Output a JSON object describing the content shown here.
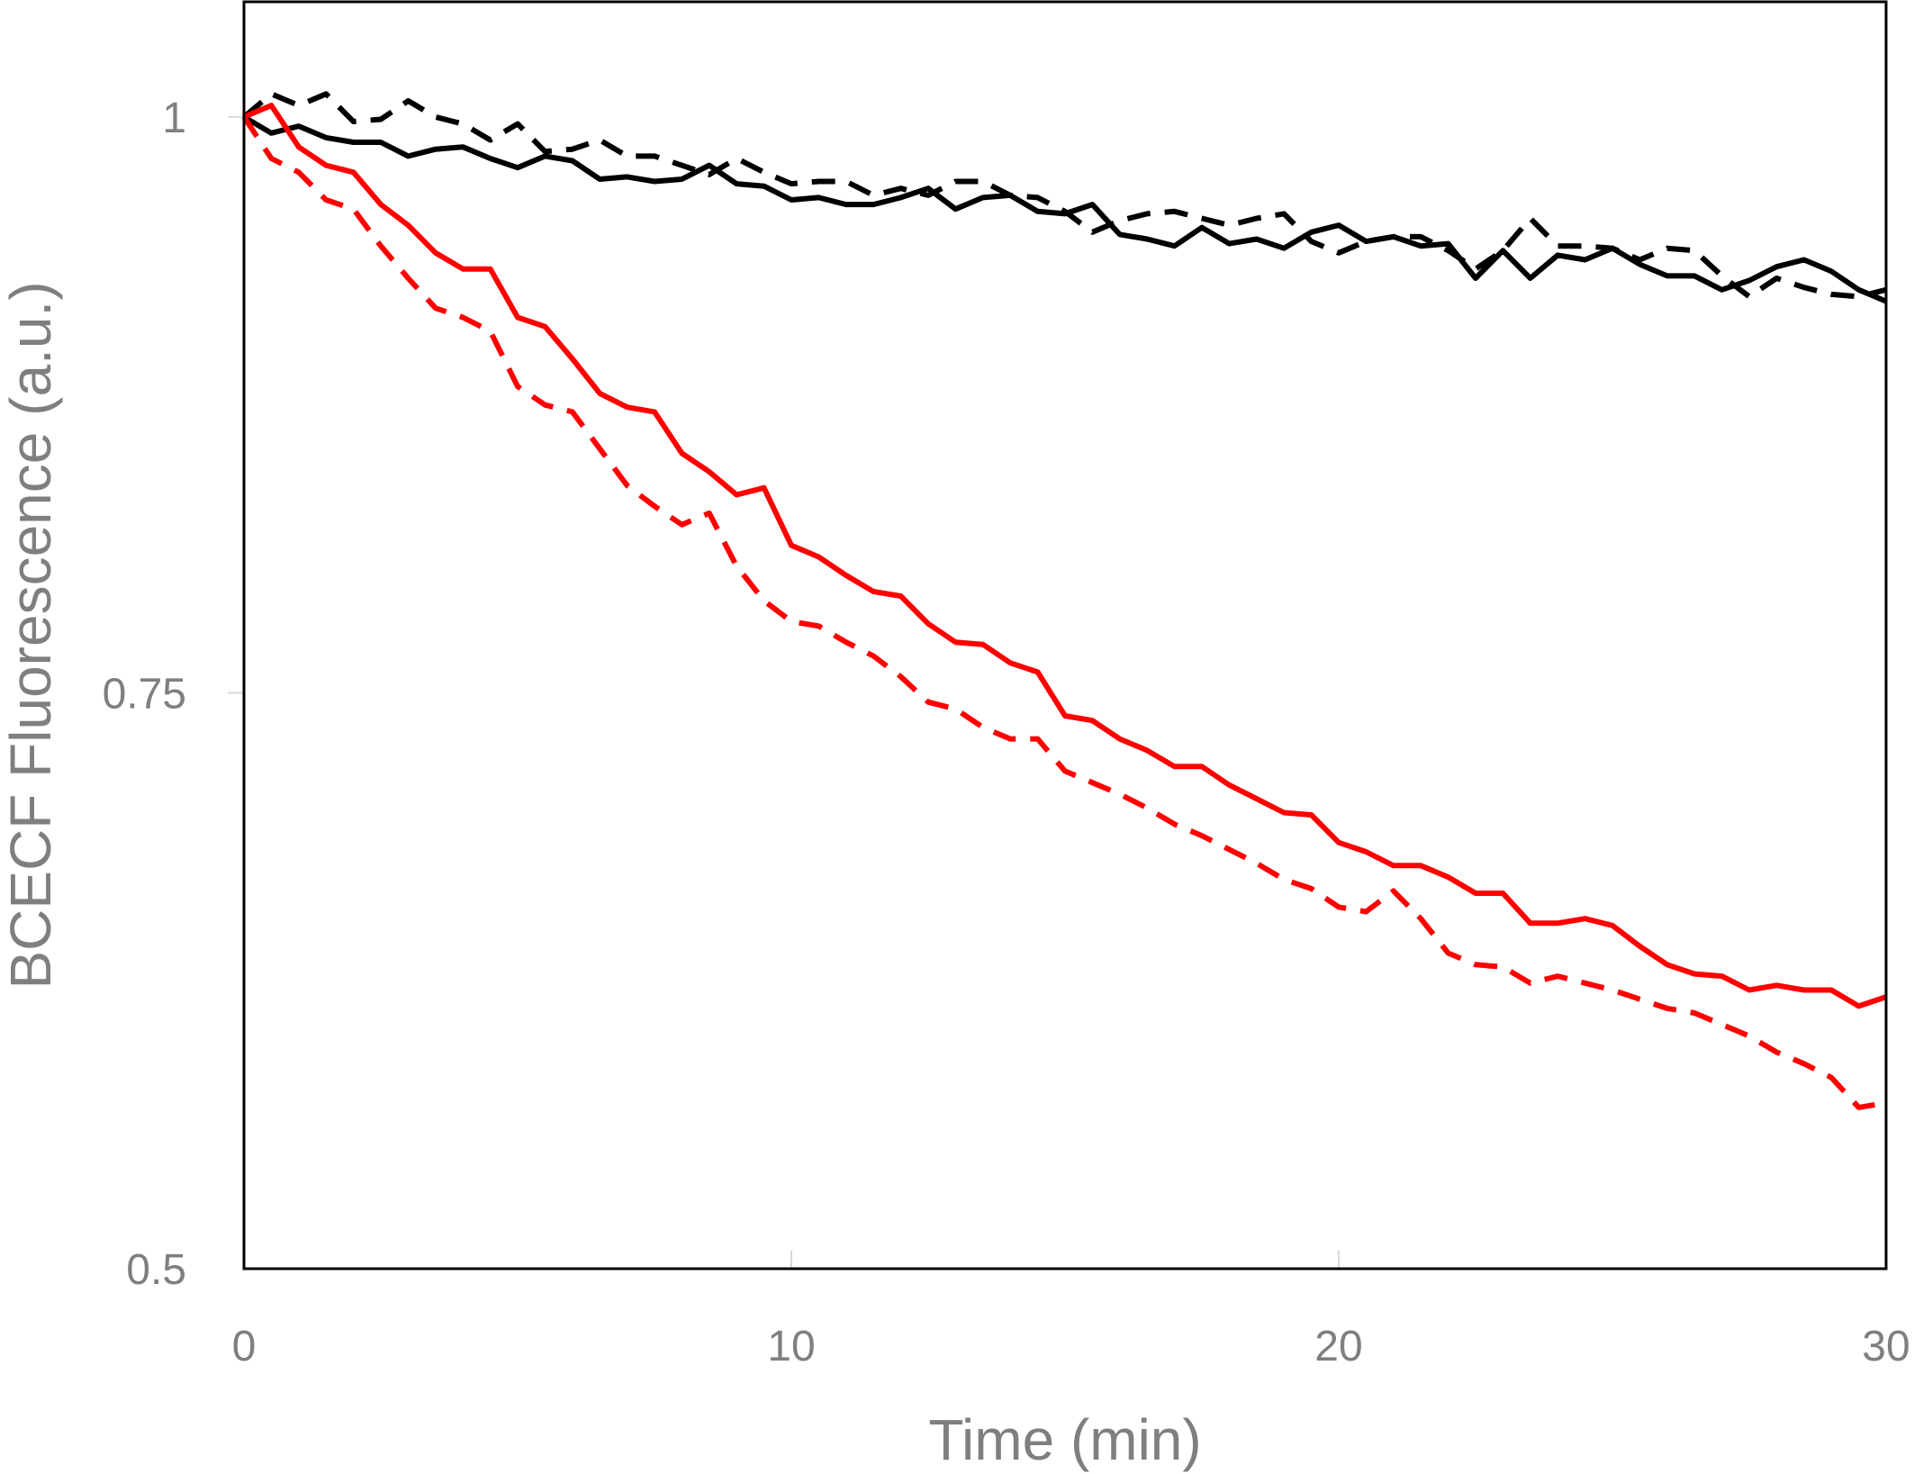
{
  "chart_data": {
    "type": "line",
    "title": "",
    "xlabel": "Time (min)",
    "ylabel": "BCECF Fluorescence (a.u.)",
    "xlim": [
      0,
      30
    ],
    "ylim": [
      0.5,
      1.05
    ],
    "x_ticks": [
      0,
      10,
      20,
      30
    ],
    "x_tick_labels": [
      "0",
      "10",
      "20",
      "30"
    ],
    "y_ticks": [
      0.5,
      0.75,
      1
    ],
    "y_tick_labels": [
      "0.5",
      "0.75",
      "1"
    ],
    "grid": false,
    "legend": "none",
    "series": [
      {
        "color": "#000000",
        "dash": "dashed",
        "x": [
          0,
          0.5,
          1,
          1.5,
          2,
          2.5,
          3,
          3.5,
          4,
          4.5,
          5,
          5.5,
          6,
          6.5,
          7,
          7.5,
          8,
          8.5,
          9,
          9.5,
          10,
          10.5,
          11,
          11.5,
          12,
          12.5,
          13,
          13.5,
          14,
          14.5,
          15,
          15.5,
          16,
          16.5,
          17,
          17.5,
          18,
          18.5,
          19,
          19.5,
          20,
          20.5,
          21,
          21.5,
          22,
          22.5,
          23,
          23.5,
          24,
          24.5,
          25,
          25.5,
          26,
          26.5,
          27,
          27.5,
          28,
          28.5,
          29,
          29.5,
          30
        ],
        "values": [
          1.0,
          1.01,
          1.005,
          1.01,
          0.998,
          0.999,
          1.007,
          1.0,
          0.997,
          0.99,
          0.997,
          0.985,
          0.986,
          0.99,
          0.983,
          0.983,
          0.979,
          0.975,
          0.982,
          0.976,
          0.971,
          0.972,
          0.972,
          0.966,
          0.969,
          0.966,
          0.972,
          0.972,
          0.966,
          0.965,
          0.959,
          0.95,
          0.955,
          0.958,
          0.959,
          0.956,
          0.953,
          0.956,
          0.958,
          0.946,
          0.941,
          0.946,
          0.948,
          0.948,
          0.942,
          0.934,
          0.942,
          0.956,
          0.944,
          0.944,
          0.943,
          0.938,
          0.943,
          0.942,
          0.931,
          0.922,
          0.93,
          0.926,
          0.923,
          0.922,
          0.925
        ]
      },
      {
        "color": "#000000",
        "dash": "solid",
        "x": [
          0,
          0.5,
          1,
          1.5,
          2,
          2.5,
          3,
          3.5,
          4,
          4.5,
          5,
          5.5,
          6,
          6.5,
          7,
          7.5,
          8,
          8.5,
          9,
          9.5,
          10,
          10.5,
          11,
          11.5,
          12,
          12.5,
          13,
          13.5,
          14,
          14.5,
          15,
          15.5,
          16,
          16.5,
          17,
          17.5,
          18,
          18.5,
          19,
          19.5,
          20,
          20.5,
          21,
          21.5,
          22,
          22.5,
          23,
          23.5,
          24,
          24.5,
          25,
          25.5,
          26,
          26.5,
          27,
          27.5,
          28,
          28.5,
          29,
          29.5,
          30
        ],
        "values": [
          1.0,
          0.993,
          0.996,
          0.991,
          0.989,
          0.989,
          0.983,
          0.986,
          0.987,
          0.982,
          0.978,
          0.983,
          0.981,
          0.973,
          0.974,
          0.972,
          0.973,
          0.979,
          0.971,
          0.97,
          0.964,
          0.965,
          0.962,
          0.962,
          0.965,
          0.969,
          0.96,
          0.965,
          0.966,
          0.959,
          0.958,
          0.962,
          0.949,
          0.947,
          0.944,
          0.952,
          0.945,
          0.947,
          0.943,
          0.95,
          0.953,
          0.946,
          0.948,
          0.944,
          0.945,
          0.93,
          0.942,
          0.93,
          0.94,
          0.938,
          0.943,
          0.936,
          0.931,
          0.931,
          0.925,
          0.929,
          0.935,
          0.938,
          0.933,
          0.925,
          0.92
        ]
      },
      {
        "color": "#ff0000",
        "dash": "dashed",
        "x": [
          0,
          0.5,
          1,
          1.5,
          2,
          2.5,
          3,
          3.5,
          4,
          4.5,
          5,
          5.5,
          6,
          6.5,
          7,
          7.5,
          8,
          8.5,
          9,
          9.5,
          10,
          10.5,
          11,
          11.5,
          12,
          12.5,
          13,
          13.5,
          14,
          14.5,
          15,
          15.5,
          16,
          16.5,
          17,
          17.5,
          18,
          18.5,
          19,
          19.5,
          20,
          20.5,
          21,
          21.5,
          22,
          22.5,
          23,
          23.5,
          24,
          24.5,
          25,
          25.5,
          26,
          26.5,
          27,
          27.5,
          28,
          28.5,
          29,
          29.5,
          30
        ],
        "values": [
          1.0,
          0.982,
          0.976,
          0.964,
          0.96,
          0.944,
          0.93,
          0.917,
          0.913,
          0.907,
          0.883,
          0.875,
          0.872,
          0.856,
          0.84,
          0.831,
          0.823,
          0.828,
          0.805,
          0.79,
          0.781,
          0.779,
          0.772,
          0.766,
          0.757,
          0.746,
          0.743,
          0.735,
          0.73,
          0.73,
          0.716,
          0.711,
          0.706,
          0.7,
          0.693,
          0.688,
          0.682,
          0.676,
          0.669,
          0.665,
          0.657,
          0.655,
          0.664,
          0.652,
          0.637,
          0.632,
          0.631,
          0.624,
          0.627,
          0.624,
          0.621,
          0.617,
          0.613,
          0.611,
          0.606,
          0.601,
          0.594,
          0.589,
          0.583,
          0.57,
          0.572
        ]
      },
      {
        "color": "#ff0000",
        "dash": "solid",
        "x": [
          0,
          0.5,
          1,
          1.5,
          2,
          2.5,
          3,
          3.5,
          4,
          4.5,
          5,
          5.5,
          6,
          6.5,
          7,
          7.5,
          8,
          8.5,
          9,
          9.5,
          10,
          10.5,
          11,
          11.5,
          12,
          12.5,
          13,
          13.5,
          14,
          14.5,
          15,
          15.5,
          16,
          16.5,
          17,
          17.5,
          18,
          18.5,
          19,
          19.5,
          20,
          20.5,
          21,
          21.5,
          22,
          22.5,
          23,
          23.5,
          24,
          24.5,
          25,
          25.5,
          26,
          26.5,
          27,
          27.5,
          28,
          28.5,
          29,
          29.5,
          30
        ],
        "values": [
          1.0,
          1.005,
          0.987,
          0.979,
          0.976,
          0.962,
          0.953,
          0.941,
          0.934,
          0.934,
          0.913,
          0.909,
          0.895,
          0.88,
          0.874,
          0.872,
          0.854,
          0.846,
          0.836,
          0.839,
          0.814,
          0.809,
          0.801,
          0.794,
          0.792,
          0.78,
          0.772,
          0.771,
          0.763,
          0.759,
          0.74,
          0.738,
          0.73,
          0.725,
          0.718,
          0.718,
          0.71,
          0.704,
          0.698,
          0.697,
          0.685,
          0.681,
          0.675,
          0.675,
          0.67,
          0.663,
          0.663,
          0.65,
          0.65,
          0.652,
          0.649,
          0.64,
          0.632,
          0.628,
          0.627,
          0.621,
          0.623,
          0.621,
          0.621,
          0.614,
          0.618
        ]
      }
    ]
  }
}
